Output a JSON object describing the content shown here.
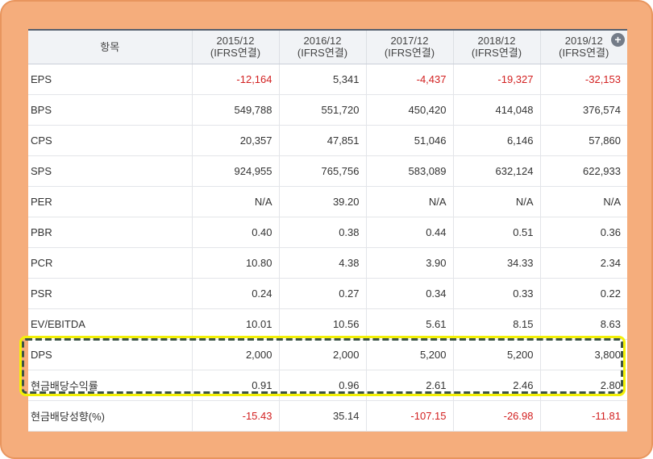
{
  "table": {
    "header": {
      "item_label": "항목",
      "years": [
        {
          "period": "2015/12",
          "basis": "(IFRS연결)"
        },
        {
          "period": "2016/12",
          "basis": "(IFRS연결)"
        },
        {
          "period": "2017/12",
          "basis": "(IFRS연결)"
        },
        {
          "period": "2018/12",
          "basis": "(IFRS연결)"
        },
        {
          "period": "2019/12",
          "basis": "(IFRS연결)"
        }
      ],
      "expand_icon": "+"
    },
    "rows": [
      {
        "label": "EPS",
        "values": [
          "-12,164",
          "5,341",
          "-4,437",
          "-19,327",
          "-32,153"
        ]
      },
      {
        "label": "BPS",
        "values": [
          "549,788",
          "551,720",
          "450,420",
          "414,048",
          "376,574"
        ]
      },
      {
        "label": "CPS",
        "values": [
          "20,357",
          "47,851",
          "51,046",
          "6,146",
          "57,860"
        ]
      },
      {
        "label": "SPS",
        "values": [
          "924,955",
          "765,756",
          "583,089",
          "632,124",
          "622,933"
        ]
      },
      {
        "label": "PER",
        "values": [
          "N/A",
          "39.20",
          "N/A",
          "N/A",
          "N/A"
        ]
      },
      {
        "label": "PBR",
        "values": [
          "0.40",
          "0.38",
          "0.44",
          "0.51",
          "0.36"
        ]
      },
      {
        "label": "PCR",
        "values": [
          "10.80",
          "4.38",
          "3.90",
          "34.33",
          "2.34"
        ]
      },
      {
        "label": "PSR",
        "values": [
          "0.24",
          "0.27",
          "0.34",
          "0.33",
          "0.22"
        ]
      },
      {
        "label": "EV/EBITDA",
        "values": [
          "10.01",
          "10.56",
          "5.61",
          "8.15",
          "8.63"
        ]
      },
      {
        "label": "DPS",
        "values": [
          "2,000",
          "2,000",
          "5,200",
          "5,200",
          "3,800"
        ]
      },
      {
        "label": "현금배당수익률",
        "values": [
          "0.91",
          "0.96",
          "2.61",
          "2.46",
          "2.80"
        ]
      },
      {
        "label": "현금배당성향(%)",
        "values": [
          "-15.43",
          "35.14",
          "-107.15",
          "-26.98",
          "-11.81"
        ]
      }
    ]
  },
  "colors": {
    "background": "#f5ad7c",
    "negative": "#d21f1f",
    "highlight_dash": "#3c5346",
    "highlight_glow": "#f3f006"
  }
}
